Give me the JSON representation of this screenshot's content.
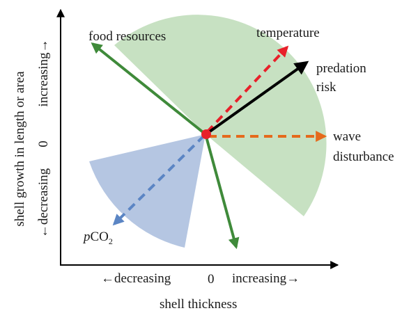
{
  "diagram": {
    "x_axis": {
      "title": "shell thickness",
      "left_label": "←decreasing",
      "zero_label": "0",
      "right_label": "increasing→"
    },
    "y_axis": {
      "title": "shell growth in length or area",
      "bottom_label": "←decreasing",
      "zero_label": "0",
      "top_label": "increasing→"
    },
    "factors": [
      {
        "id": "food-resources",
        "label": "food resources",
        "arrow_color": "#3f8a3a",
        "style": "solid"
      },
      {
        "id": "temperature",
        "label": "temperature",
        "arrow_color": "#e8202a",
        "style": "dashed"
      },
      {
        "id": "predation-risk",
        "label_lines": [
          "predation",
          "risk"
        ],
        "arrow_color": "#000000",
        "style": "solid"
      },
      {
        "id": "wave-disturbance",
        "label_lines": [
          "wave",
          "disturbance"
        ],
        "arrow_color": "#e56a1c",
        "style": "dashed"
      },
      {
        "id": "pco2",
        "label_prefix": "p",
        "label_main": "CO",
        "label_sub": "2",
        "arrow_color": "#5b85c4",
        "style": "dashed"
      },
      {
        "id": "downward",
        "arrow_color": "#3f8a3a",
        "style": "solid"
      }
    ],
    "regions": {
      "green_sector_color": "#c4dfbf",
      "blue_sector_color": "#b1c3e0"
    },
    "origin_marker_color": "#e8202a"
  }
}
